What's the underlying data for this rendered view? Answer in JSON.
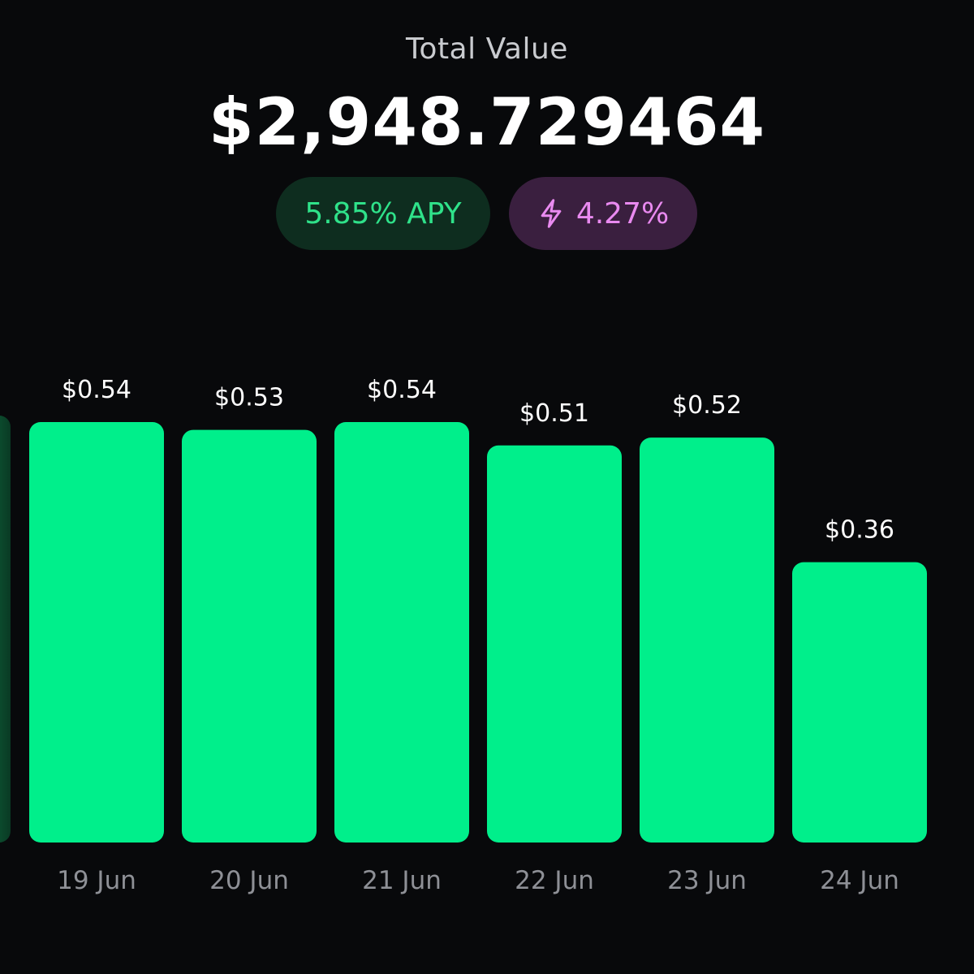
{
  "header": {
    "label": "Total Value",
    "value": "$2,948.729464"
  },
  "badges": {
    "apy": "5.85% APY",
    "boost": "4.27%",
    "boost_icon": "lightning-bolt-icon"
  },
  "colors": {
    "background": "#08090b",
    "bar": "#00ef8b",
    "apy_bg": "#0e2d1f",
    "apy_text": "#2fe28a",
    "boost_bg": "#3a1f3f",
    "boost_text": "#e98af0",
    "axis_label": "#8e9096"
  },
  "chart_data": {
    "type": "bar",
    "categories": [
      "19 Jun",
      "20 Jun",
      "21 Jun",
      "22 Jun",
      "23 Jun",
      "24 Jun"
    ],
    "values": [
      0.54,
      0.53,
      0.54,
      0.51,
      0.52,
      0.36
    ],
    "value_labels": [
      "$0.54",
      "$0.53",
      "$0.54",
      "$0.51",
      "$0.52",
      "$0.36"
    ],
    "title": "",
    "xlabel": "",
    "ylabel": "",
    "ylim": [
      0,
      0.54
    ],
    "grid": false,
    "legend": "none",
    "partial_bar_left_edge": true
  }
}
